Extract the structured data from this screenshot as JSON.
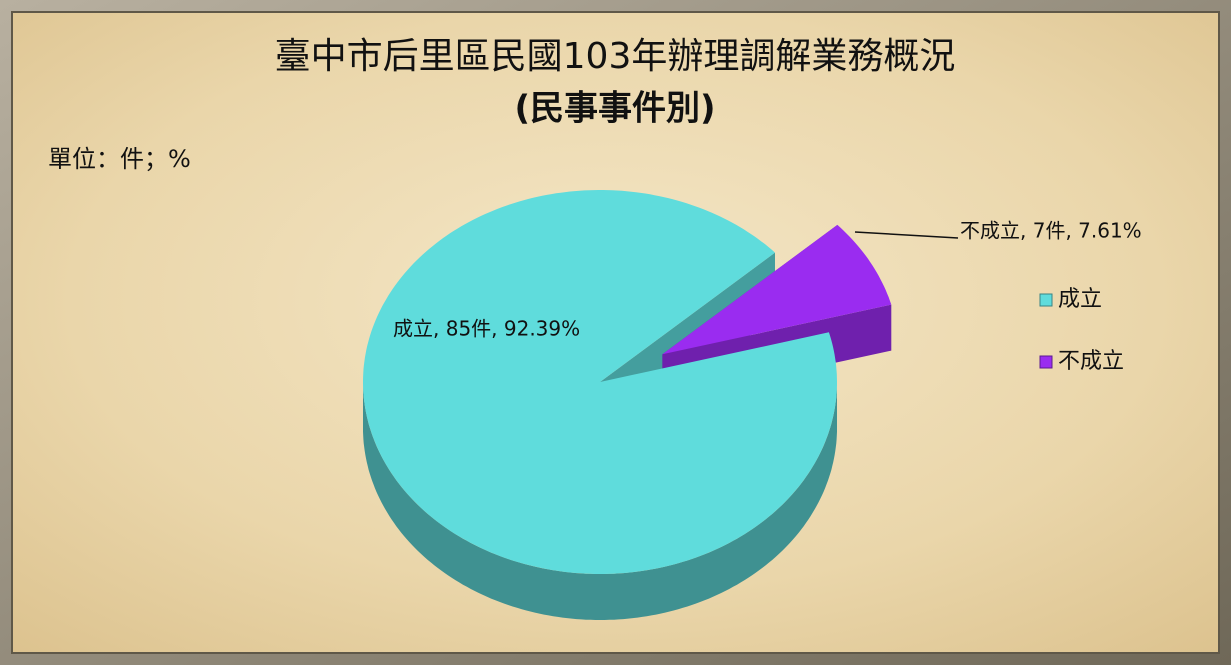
{
  "chart_data": {
    "type": "pie",
    "title": "臺中市后里區民國103年辦理調解業務概況",
    "subtitle": "(民事事件別)",
    "unit_note": "單位：件；%",
    "categories": [
      "成立",
      "不成立"
    ],
    "values": [
      85,
      7
    ],
    "value_labels": [
      "成立, 85件, 92.39%",
      "不成立, 7件, 7.61%"
    ],
    "colors": [
      "#5fdcdc",
      "#9a2cf0"
    ],
    "legend": "right"
  }
}
